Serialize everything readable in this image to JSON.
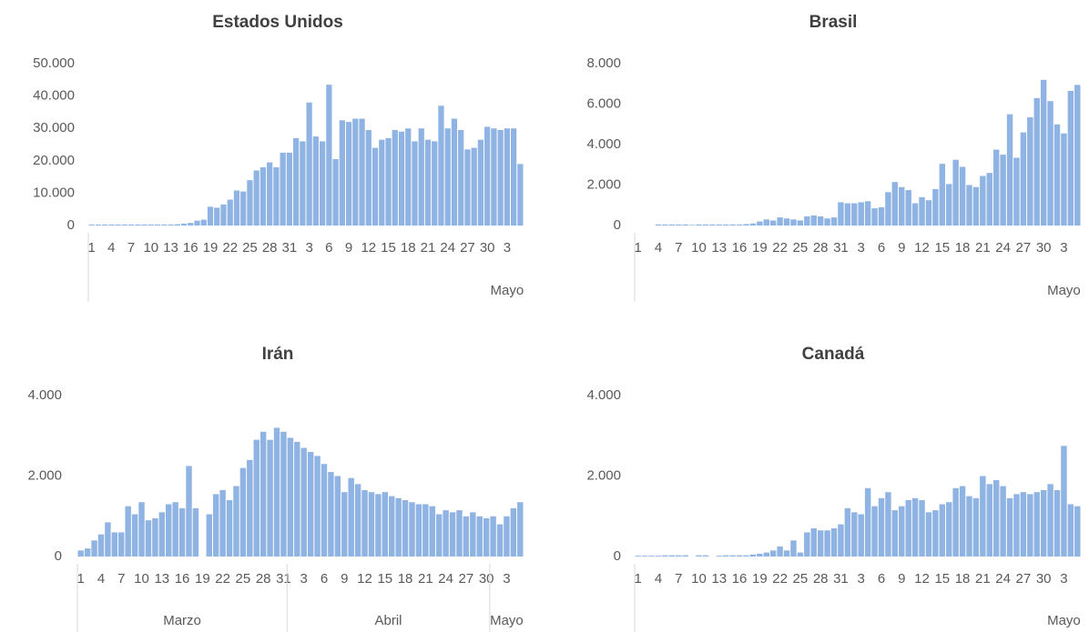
{
  "chart_data": [
    {
      "type": "bar",
      "title": "Estados Unidos",
      "color": "#8fb3e3",
      "categories": [
        "1",
        null,
        null,
        "4",
        null,
        null,
        "7",
        null,
        null,
        "10",
        null,
        null,
        "13",
        null,
        null,
        "16",
        null,
        null,
        "19",
        null,
        null,
        "22",
        null,
        null,
        "25",
        null,
        null,
        "28",
        null,
        null,
        "31",
        null,
        null,
        "3",
        null,
        null,
        "6",
        null,
        null,
        "9",
        null,
        null,
        "12",
        null,
        null,
        "15",
        null,
        null,
        "18",
        null,
        null,
        "21",
        null,
        null,
        "24",
        null,
        null,
        "27",
        null,
        null,
        "30",
        null,
        null,
        "3",
        null,
        null
      ],
      "values": [
        300,
        300,
        300,
        300,
        300,
        300,
        300,
        300,
        300,
        300,
        300,
        300,
        300,
        400,
        600,
        800,
        1500,
        1800,
        5800,
        5500,
        6500,
        8000,
        10800,
        10500,
        14000,
        17000,
        18000,
        19500,
        18000,
        22500,
        22500,
        27000,
        26000,
        38000,
        27500,
        26000,
        43500,
        20500,
        32500,
        32000,
        33000,
        33000,
        29500,
        24000,
        26500,
        27000,
        29500,
        29000,
        30000,
        26000,
        30000,
        26500,
        26000,
        37000,
        30000,
        33000,
        29500,
        23500,
        24000,
        26500,
        30500,
        30000,
        29500,
        30000,
        30000,
        19000
      ],
      "ylim": [
        0,
        50000
      ],
      "yticks": [
        0,
        {
          "value": 10000,
          "label": "10.000"
        },
        {
          "value": 20000,
          "label": "20.000"
        },
        {
          "value": 30000,
          "label": "30.000"
        },
        {
          "value": 40000,
          "label": "40.000"
        },
        {
          "value": 50000,
          "label": "50.000"
        }
      ],
      "month_labels": [
        "Mayo"
      ]
    },
    {
      "type": "bar",
      "title": "Brasil",
      "color": "#8fb3e3",
      "categories": [
        "1",
        null,
        null,
        "4",
        null,
        null,
        "7",
        null,
        null,
        "10",
        null,
        null,
        "13",
        null,
        null,
        "16",
        null,
        null,
        "19",
        null,
        null,
        "22",
        null,
        null,
        "25",
        null,
        null,
        "28",
        null,
        null,
        "31",
        null,
        null,
        "3",
        null,
        null,
        "6",
        null,
        null,
        "9",
        null,
        null,
        "12",
        null,
        null,
        "15",
        null,
        null,
        "18",
        null,
        null,
        "21",
        null,
        null,
        "24",
        null,
        null,
        "27",
        null,
        null,
        "30",
        null,
        null,
        "3",
        null,
        null
      ],
      "values": [
        0,
        0,
        0,
        50,
        50,
        50,
        50,
        50,
        30,
        50,
        50,
        50,
        50,
        50,
        50,
        50,
        70,
        100,
        200,
        300,
        250,
        400,
        350,
        300,
        250,
        450,
        500,
        450,
        350,
        400,
        1150,
        1100,
        1100,
        1150,
        1200,
        850,
        900,
        1650,
        2150,
        1900,
        1750,
        1100,
        1400,
        1250,
        1800,
        3050,
        2050,
        3250,
        2900,
        2000,
        1900,
        2450,
        2600,
        3750,
        3500,
        5500,
        3350,
        4600,
        5350,
        6300,
        7200,
        6150,
        5000,
        4550,
        6650,
        6950
      ],
      "ylim": [
        0,
        8000
      ],
      "yticks": [
        0,
        {
          "value": 2000,
          "label": "2.000"
        },
        {
          "value": 4000,
          "label": "4.000"
        },
        {
          "value": 6000,
          "label": "6.000"
        },
        {
          "value": 8000,
          "label": "8.000"
        }
      ],
      "month_labels": [
        "Mayo"
      ]
    },
    {
      "type": "bar",
      "title": "Irán",
      "color": "#8fb3e3",
      "categories": [
        "1",
        null,
        null,
        "4",
        null,
        null,
        "7",
        null,
        null,
        "10",
        null,
        null,
        "13",
        null,
        null,
        "16",
        null,
        null,
        "19",
        null,
        null,
        "22",
        null,
        null,
        "25",
        null,
        null,
        "28",
        null,
        null,
        "31",
        null,
        null,
        "3",
        null,
        null,
        "6",
        null,
        null,
        "9",
        null,
        null,
        "12",
        null,
        null,
        "15",
        null,
        null,
        "18",
        null,
        null,
        "21",
        null,
        null,
        "24",
        null,
        null,
        "27",
        null,
        null,
        "30",
        null,
        null,
        "3",
        null,
        null
      ],
      "values": [
        150,
        200,
        400,
        550,
        850,
        600,
        600,
        1250,
        1050,
        1350,
        900,
        950,
        1100,
        1300,
        1350,
        1200,
        2250,
        1200,
        0,
        1050,
        1550,
        1650,
        1400,
        1750,
        2200,
        2400,
        2900,
        3100,
        2900,
        3200,
        3100,
        2950,
        2850,
        2700,
        2600,
        2500,
        2300,
        2100,
        2000,
        1600,
        1950,
        1800,
        1650,
        1600,
        1550,
        1600,
        1500,
        1450,
        1400,
        1350,
        1300,
        1300,
        1250,
        1050,
        1150,
        1100,
        1150,
        1000,
        1100,
        1000,
        950,
        1000,
        800,
        1000,
        1200,
        1350
      ],
      "ylim": [
        0,
        4000
      ],
      "yticks": [
        0,
        {
          "value": 2000,
          "label": "2.000"
        },
        {
          "value": 4000,
          "label": "4.000"
        }
      ],
      "month_labels": [
        "Marzo",
        "Abril",
        "Mayo"
      ]
    },
    {
      "type": "bar",
      "title": "Canadá",
      "color": "#8fb3e3",
      "categories": [
        "1",
        null,
        null,
        "4",
        null,
        null,
        "7",
        null,
        null,
        "10",
        null,
        null,
        "13",
        null,
        null,
        "16",
        null,
        null,
        "19",
        null,
        null,
        "22",
        null,
        null,
        "25",
        null,
        null,
        "28",
        null,
        null,
        "31",
        null,
        null,
        "3",
        null,
        null,
        "6",
        null,
        null,
        "9",
        null,
        null,
        "12",
        null,
        null,
        "15",
        null,
        null,
        "18",
        null,
        null,
        "21",
        null,
        null,
        "24",
        null,
        null,
        "27",
        null,
        null,
        "30",
        null,
        null,
        "3",
        null,
        null
      ],
      "values": [
        20,
        20,
        20,
        20,
        30,
        30,
        30,
        30,
        0,
        30,
        30,
        0,
        20,
        30,
        30,
        30,
        30,
        50,
        70,
        100,
        150,
        250,
        150,
        400,
        100,
        600,
        700,
        650,
        650,
        700,
        800,
        1200,
        1100,
        1050,
        1700,
        1250,
        1450,
        1600,
        1150,
        1250,
        1400,
        1450,
        1400,
        1100,
        1150,
        1300,
        1350,
        1700,
        1750,
        1500,
        1450,
        2000,
        1800,
        1900,
        1750,
        1450,
        1550,
        1600,
        1550,
        1600,
        1650,
        1800,
        1650,
        2750,
        1300,
        1250
      ],
      "ylim": [
        0,
        4000
      ],
      "yticks": [
        0,
        {
          "value": 2000,
          "label": "2.000"
        },
        {
          "value": 4000,
          "label": "4.000"
        }
      ],
      "month_labels": [
        "Mayo"
      ]
    }
  ]
}
